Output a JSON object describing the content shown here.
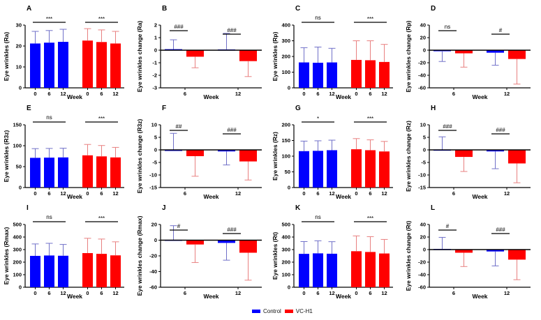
{
  "legend": {
    "items": [
      {
        "label": "Control",
        "color": "#0000ff"
      },
      {
        "label": "VC-H1",
        "color": "#ff0000"
      }
    ]
  },
  "colors": {
    "control": "#0000ff",
    "control_error": "#7070c8",
    "treatment": "#ff0000",
    "treatment_error": "#e88080"
  },
  "chart_data": [
    {
      "panel": "A",
      "type": "bar",
      "kind": "absolute",
      "ylabel": "Eye wrinkles (Ra)",
      "xlabel": "Week",
      "ylim": [
        0,
        30
      ],
      "yticks": [
        0,
        10,
        20,
        30
      ],
      "categories": [
        "0",
        "6",
        "12"
      ],
      "series": [
        {
          "name": "Control",
          "values": [
            21.2,
            21.6,
            22.0
          ],
          "errors": [
            5.8,
            5.8,
            6.0
          ]
        },
        {
          "name": "VC-H1",
          "values": [
            22.6,
            21.9,
            21.2
          ],
          "errors": [
            5.7,
            5.8,
            5.8
          ]
        }
      ],
      "significance": [
        {
          "group": "Control",
          "label": "***"
        },
        {
          "group": "VC-H1",
          "label": "***"
        }
      ]
    },
    {
      "panel": "B",
      "type": "bar",
      "kind": "change",
      "ylabel": "Eye wrinkles change (Ra)",
      "xlabel": "Week",
      "ylim": [
        -3,
        2
      ],
      "yticks": [
        -3,
        -2,
        -1,
        0,
        1,
        2
      ],
      "categories": [
        "6",
        "12"
      ],
      "series": [
        {
          "name": "Control",
          "values": [
            0.08,
            0.06
          ],
          "errors": [
            0.75,
            1.28
          ]
        },
        {
          "name": "VC-H1",
          "values": [
            -0.52,
            -0.87
          ],
          "errors": [
            0.88,
            1.23
          ]
        }
      ],
      "significance": [
        {
          "category": "6",
          "label": "###"
        },
        {
          "category": "12",
          "label": "###"
        }
      ]
    },
    {
      "panel": "C",
      "type": "bar",
      "kind": "absolute",
      "ylabel": "Eye wrinkles (Rp)",
      "xlabel": "Week",
      "ylim": [
        0,
        400
      ],
      "yticks": [
        0,
        100,
        200,
        300,
        400
      ],
      "categories": [
        "0",
        "6",
        "12"
      ],
      "series": [
        {
          "name": "Control",
          "values": [
            162,
            160,
            162
          ],
          "errors": [
            94,
            100,
            90
          ]
        },
        {
          "name": "VC-H1",
          "values": [
            178,
            176,
            165
          ],
          "errors": [
            122,
            124,
            112
          ]
        }
      ],
      "significance": [
        {
          "group": "Control",
          "label": "ns"
        },
        {
          "group": "VC-H1",
          "label": "***"
        }
      ]
    },
    {
      "panel": "D",
      "type": "bar",
      "kind": "change",
      "ylabel": "Eye wrinkles change (Rp)",
      "xlabel": "Week",
      "ylim": [
        -60,
        40
      ],
      "yticks": [
        -60,
        -40,
        -20,
        0,
        20,
        40
      ],
      "categories": [
        "6",
        "12"
      ],
      "series": [
        {
          "name": "Control",
          "values": [
            -1,
            -4
          ],
          "errors": [
            17,
            20
          ]
        },
        {
          "name": "VC-H1",
          "values": [
            -5,
            -14
          ],
          "errors": [
            22,
            40
          ]
        }
      ],
      "significance": [
        {
          "category": "6",
          "label": "ns"
        },
        {
          "category": "12",
          "label": "#"
        }
      ]
    },
    {
      "panel": "E",
      "type": "bar",
      "kind": "absolute",
      "ylabel": "Eye wrinkles (R3z)",
      "xlabel": "Week",
      "ylim": [
        0,
        150
      ],
      "yticks": [
        0,
        50,
        100,
        150
      ],
      "categories": [
        "0",
        "6",
        "12"
      ],
      "series": [
        {
          "name": "Control",
          "values": [
            71,
            71.5,
            72
          ],
          "errors": [
            22,
            22,
            22
          ]
        },
        {
          "name": "VC-H1",
          "values": [
            77,
            74.5,
            72
          ],
          "errors": [
            26,
            26,
            24
          ]
        }
      ],
      "significance": [
        {
          "group": "Control",
          "label": "ns"
        },
        {
          "group": "VC-H1",
          "label": "***"
        }
      ]
    },
    {
      "panel": "F",
      "type": "bar",
      "kind": "change",
      "ylabel": "Eye wrinkles change (R3z)",
      "xlabel": "Week",
      "ylim": [
        -15,
        10
      ],
      "yticks": [
        -15,
        -10,
        -5,
        0,
        5,
        10
      ],
      "categories": [
        "6",
        "12"
      ],
      "series": [
        {
          "name": "Control",
          "values": [
            0.0,
            -0.6
          ],
          "errors": [
            6.6,
            5.4
          ]
        },
        {
          "name": "VC-H1",
          "values": [
            -2.5,
            -4.6
          ],
          "errors": [
            8.0,
            7.4
          ]
        }
      ],
      "significance": [
        {
          "category": "6",
          "label": "##"
        },
        {
          "category": "12",
          "label": "###"
        }
      ]
    },
    {
      "panel": "G",
      "type": "bar",
      "kind": "absolute",
      "ylabel": "Eye wrinkles (Rz)",
      "xlabel": "Week",
      "ylim": [
        0,
        200
      ],
      "yticks": [
        0,
        50,
        100,
        150,
        200
      ],
      "categories": [
        "0",
        "6",
        "12"
      ],
      "series": [
        {
          "name": "Control",
          "values": [
            116,
            117,
            119
          ],
          "errors": [
            32,
            32,
            32
          ]
        },
        {
          "name": "VC-H1",
          "values": [
            122,
            119,
            115
          ],
          "errors": [
            34,
            33,
            32
          ]
        }
      ],
      "significance": [
        {
          "group": "Control",
          "label": "*"
        },
        {
          "group": "VC-H1",
          "label": "***"
        }
      ]
    },
    {
      "panel": "H",
      "type": "bar",
      "kind": "change",
      "ylabel": "Eye wrinkles change (Rz)",
      "xlabel": "Week",
      "ylim": [
        -15,
        10
      ],
      "yticks": [
        -15,
        -10,
        -5,
        0,
        5,
        10
      ],
      "categories": [
        "6",
        "12"
      ],
      "series": [
        {
          "name": "Control",
          "values": [
            0.1,
            -0.6
          ],
          "errors": [
            5.1,
            6.9
          ]
        },
        {
          "name": "VC-H1",
          "values": [
            -2.8,
            -5.4
          ],
          "errors": [
            5.8,
            7.7
          ]
        }
      ],
      "significance": [
        {
          "category": "6",
          "label": "###"
        },
        {
          "category": "12",
          "label": "###"
        }
      ]
    },
    {
      "panel": "I",
      "type": "bar",
      "kind": "absolute",
      "ylabel": "Eye wrinkles (Rmax)",
      "xlabel": "Week",
      "ylim": [
        0,
        500
      ],
      "yticks": [
        0,
        100,
        200,
        300,
        400,
        500
      ],
      "categories": [
        "0",
        "6",
        "12"
      ],
      "series": [
        {
          "name": "Control",
          "values": [
            250,
            253,
            251
          ],
          "errors": [
            95,
            97,
            90
          ]
        },
        {
          "name": "VC-H1",
          "values": [
            272,
            266,
            254
          ],
          "errors": [
            118,
            118,
            108
          ]
        }
      ],
      "significance": [
        {
          "group": "Control",
          "label": "ns"
        },
        {
          "group": "VC-H1",
          "label": "***"
        }
      ]
    },
    {
      "panel": "J",
      "type": "bar",
      "kind": "change",
      "ylabel": "Eye wrinkles change (Rmax)",
      "xlabel": "Week",
      "ylim": [
        -60,
        20
      ],
      "yticks": [
        -60,
        -40,
        -20,
        0,
        20
      ],
      "categories": [
        "6",
        "12"
      ],
      "series": [
        {
          "name": "Control",
          "values": [
            0.5,
            -3.5
          ],
          "errors": [
            18,
            22
          ]
        },
        {
          "name": "VC-H1",
          "values": [
            -5.5,
            -16
          ],
          "errors": [
            23,
            35
          ]
        }
      ],
      "significance": [
        {
          "category": "6",
          "label": "#"
        },
        {
          "category": "12",
          "label": "###"
        }
      ]
    },
    {
      "panel": "K",
      "type": "bar",
      "kind": "absolute",
      "ylabel": "Eye wrinkles (Rt)",
      "xlabel": "Week",
      "ylim": [
        0,
        500
      ],
      "yticks": [
        0,
        100,
        200,
        300,
        400,
        500
      ],
      "categories": [
        "0",
        "6",
        "12"
      ],
      "series": [
        {
          "name": "Control",
          "values": [
            266,
            270,
            267
          ],
          "errors": [
            98,
            100,
            96
          ]
        },
        {
          "name": "VC-H1",
          "values": [
            287,
            281,
            269
          ],
          "errors": [
            122,
            122,
            112
          ]
        }
      ],
      "significance": [
        {
          "group": "Control",
          "label": "ns"
        },
        {
          "group": "VC-H1",
          "label": "***"
        }
      ]
    },
    {
      "panel": "L",
      "type": "bar",
      "kind": "change",
      "ylabel": "Eye wrinkles change (Rt)",
      "xlabel": "Week",
      "ylim": [
        -60,
        40
      ],
      "yticks": [
        -60,
        -40,
        -20,
        0,
        20,
        40
      ],
      "categories": [
        "6",
        "12"
      ],
      "series": [
        {
          "name": "Control",
          "values": [
            1,
            -3
          ],
          "errors": [
            18.5,
            23
          ]
        },
        {
          "name": "VC-H1",
          "values": [
            -5,
            -16
          ],
          "errors": [
            22,
            32
          ]
        }
      ],
      "significance": [
        {
          "category": "6",
          "label": "#"
        },
        {
          "category": "12",
          "label": "###"
        }
      ]
    }
  ]
}
